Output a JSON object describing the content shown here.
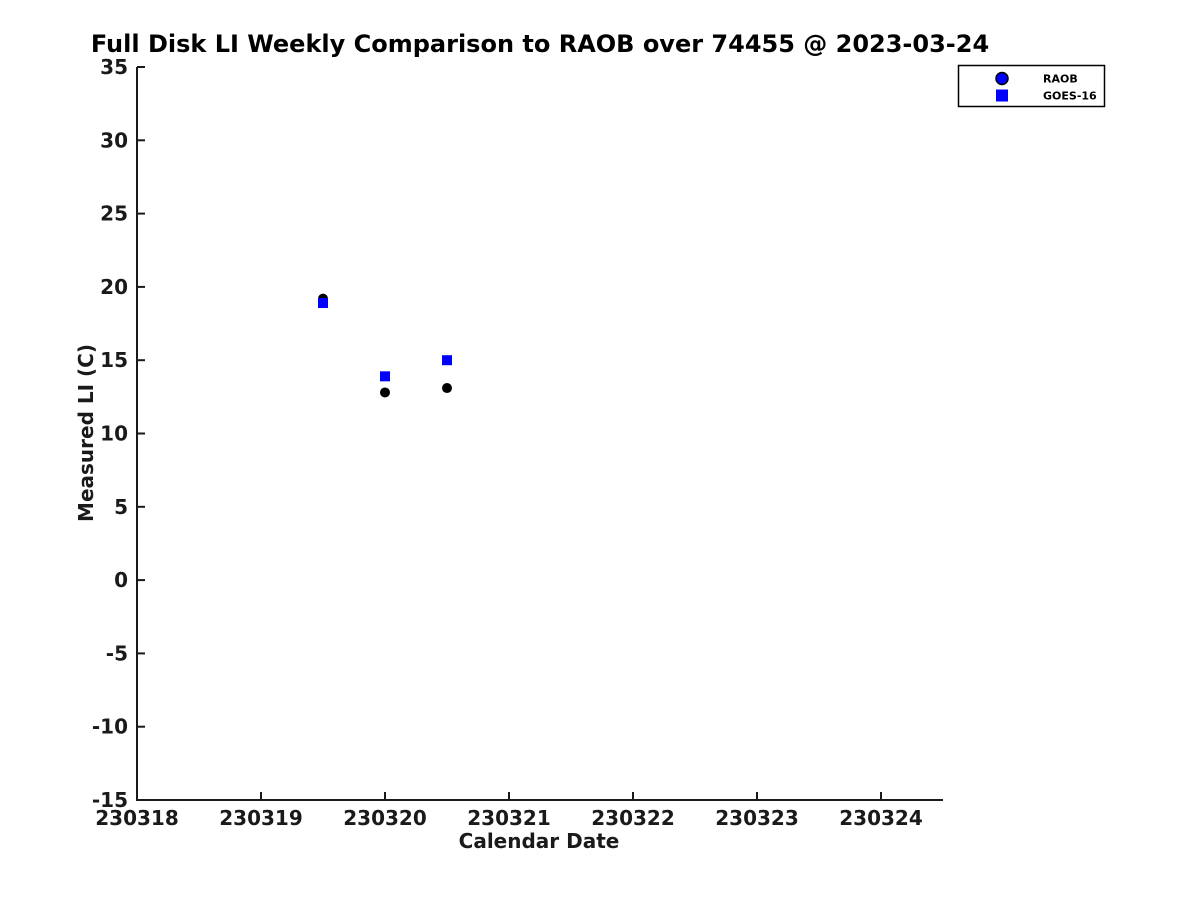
{
  "figure": {
    "title": "Full Disk LI Weekly Comparison to RAOB over 74455 @ 2023-03-24",
    "xlabel": "Calendar Date",
    "ylabel": "Measured LI (C)"
  },
  "chart_data": {
    "type": "scatter",
    "title": "Full Disk LI Weekly Comparison to RAOB over 74455 @ 2023-03-24",
    "xlabel": "Calendar Date",
    "ylabel": "Measured LI (C)",
    "xlim": [
      230318,
      230324.5
    ],
    "ylim": [
      -15,
      35
    ],
    "x_ticks": [
      230318,
      230319,
      230320,
      230321,
      230322,
      230323,
      230324
    ],
    "y_ticks": [
      35,
      30,
      25,
      20,
      15,
      10,
      5,
      0,
      -5,
      -10,
      -15
    ],
    "grid": false,
    "axis_color": "#1a1a1a",
    "background": "#ffffff",
    "legend": {
      "position": "outside-top-right",
      "border_color": "#000000",
      "background": "#ffffff",
      "entries": [
        "RAOB",
        "GOES-16"
      ]
    },
    "series": [
      {
        "name": "RAOB",
        "marker": "circle",
        "marker_color": "#000000",
        "legend_marker_color": "#0000ff",
        "legend_marker_edge": "#000000",
        "x": [
          230319.5,
          230320.0,
          230320.5
        ],
        "y": [
          19.2,
          12.8,
          13.1
        ]
      },
      {
        "name": "GOES-16",
        "marker": "square",
        "marker_color": "#0000ff",
        "legend_marker_color": "#0000ff",
        "legend_marker_edge": "#0000ff",
        "x": [
          230319.5,
          230320.0,
          230320.5
        ],
        "y": [
          18.9,
          13.9,
          15.0
        ]
      }
    ]
  }
}
